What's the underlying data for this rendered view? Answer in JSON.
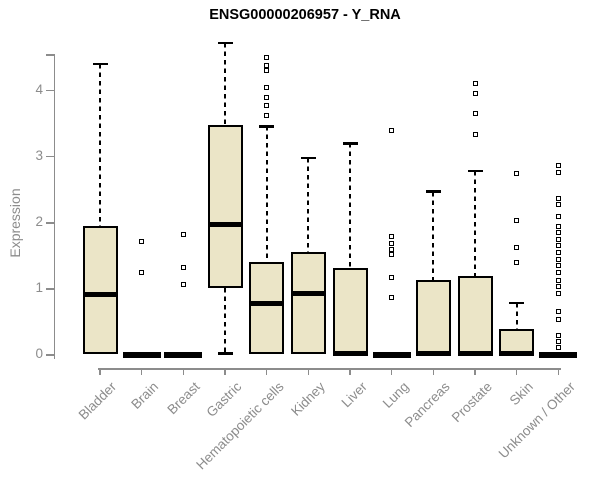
{
  "title": "ENSG00000206957 - Y_RNA",
  "chart_data": {
    "type": "boxplot",
    "title": "ENSG00000206957 - Y_RNA",
    "xlabel": "",
    "ylabel": "Expression",
    "ylim": [
      0,
      4.78
    ],
    "yticks": [
      0,
      1,
      2,
      3,
      4
    ],
    "grid": false,
    "legend": null,
    "categories": [
      "Bladder",
      "Brain",
      "Breast",
      "Gastric",
      "Hematopoietic cells",
      "Kidney",
      "Liver",
      "Lung",
      "Pancreas",
      "Prostate",
      "Skin",
      "Unknown / Other"
    ],
    "series": [
      {
        "label": "Bladder",
        "q1": 0.02,
        "median": 0.92,
        "q3": 1.95,
        "whisker_low": null,
        "whisker_high": 4.4,
        "outliers": []
      },
      {
        "label": "Brain",
        "q1": 0,
        "median": 0.01,
        "q3": 0.03,
        "whisker_low": null,
        "whisker_high": null,
        "outliers": [
          1.72,
          1.25
        ]
      },
      {
        "label": "Breast",
        "q1": 0,
        "median": 0.01,
        "q3": 0.03,
        "whisker_low": null,
        "whisker_high": null,
        "outliers": [
          1.83,
          1.32,
          1.07
        ]
      },
      {
        "label": "Gastric",
        "q1": 1.01,
        "median": 1.98,
        "q3": 3.48,
        "whisker_low": 0.02,
        "whisker_high": 4.72,
        "outliers": []
      },
      {
        "label": "Hematopoietic cells",
        "q1": 0.02,
        "median": 0.78,
        "q3": 1.41,
        "whisker_low": null,
        "whisker_high": 3.46,
        "outliers": [
          4.5,
          4.38,
          4.31,
          4.04,
          3.9,
          3.78,
          3.62
        ]
      },
      {
        "label": "Kidney",
        "q1": 0.02,
        "median": 0.93,
        "q3": 1.56,
        "whisker_low": null,
        "whisker_high": 2.98,
        "outliers": []
      },
      {
        "label": "Liver",
        "q1": 0.02,
        "median": 0.03,
        "q3": 1.31,
        "whisker_low": null,
        "whisker_high": 3.2,
        "outliers": []
      },
      {
        "label": "Lung",
        "q1": 0,
        "median": 0.01,
        "q3": 0.03,
        "whisker_low": null,
        "whisker_high": null,
        "outliers": [
          3.4,
          1.8,
          1.69,
          1.6,
          1.52,
          1.18,
          0.87
        ]
      },
      {
        "label": "Pancreas",
        "q1": 0.02,
        "median": 0.03,
        "q3": 1.14,
        "whisker_low": null,
        "whisker_high": 2.47,
        "outliers": []
      },
      {
        "label": "Prostate",
        "q1": 0.02,
        "median": 0.03,
        "q3": 1.2,
        "whisker_low": null,
        "whisker_high": 2.78,
        "outliers": [
          4.1,
          3.96,
          3.65,
          3.33
        ]
      },
      {
        "label": "Skin",
        "q1": 0.02,
        "median": 0.03,
        "q3": 0.4,
        "whisker_low": null,
        "whisker_high": 0.79,
        "outliers": [
          2.75,
          2.03,
          1.62,
          1.4
        ]
      },
      {
        "label": "Unknown / Other",
        "q1": 0,
        "median": 0.01,
        "q3": 0.03,
        "whisker_low": null,
        "whisker_high": null,
        "outliers": [
          2.87,
          2.76,
          2.37,
          2.28,
          2.09,
          1.95,
          1.85,
          1.75,
          1.65,
          1.55,
          1.45,
          1.35,
          1.25,
          1.13,
          1.03,
          0.93,
          0.66,
          0.53,
          0.3,
          0.2,
          0.11
        ]
      }
    ],
    "colors": {
      "box_fill": "#EBE5C7",
      "box_border": "#000000",
      "axis": "#8C8C8C",
      "tick_label": "#8C8C8C",
      "title": "#000000",
      "background": "#FFFFFF"
    }
  }
}
